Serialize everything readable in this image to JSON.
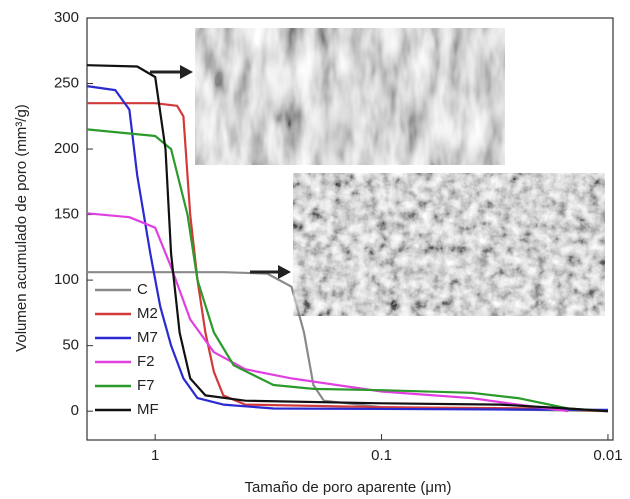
{
  "chart_data": {
    "type": "line",
    "xlabel": "Tamaño de poro aparente (μm)",
    "ylabel": "Volumen acumulado de poro (mm³/g)",
    "xlog": true,
    "xlim": [
      2,
      0.0095
    ],
    "xticks": [
      1,
      0.1,
      0.01
    ],
    "ylim": [
      -22,
      300
    ],
    "yticks": [
      0,
      50,
      100,
      150,
      200,
      250,
      300
    ],
    "legend": "lower left",
    "series": [
      {
        "name": "C",
        "color": "#8a8a8a",
        "x": [
          2,
          1.0,
          0.5,
          0.32,
          0.25,
          0.22,
          0.2,
          0.18,
          0.1,
          0.05,
          0.01
        ],
        "values": [
          106,
          106,
          106,
          105,
          95,
          60,
          20,
          8,
          3,
          2,
          0
        ]
      },
      {
        "name": "M2",
        "color": "#d23a3a",
        "x": [
          2,
          1.0,
          0.8,
          0.75,
          0.7,
          0.65,
          0.6,
          0.55,
          0.5,
          0.4,
          0.1,
          0.02,
          0.01
        ],
        "values": [
          235,
          235,
          233,
          225,
          150,
          100,
          60,
          30,
          12,
          5,
          3,
          2,
          0
        ]
      },
      {
        "name": "M7",
        "color": "#2a2ad0",
        "x": [
          2,
          1.5,
          1.3,
          1.2,
          1.05,
          0.95,
          0.85,
          0.75,
          0.65,
          0.5,
          0.3,
          0.01
        ],
        "values": [
          248,
          245,
          230,
          180,
          120,
          80,
          50,
          25,
          10,
          5,
          2,
          1
        ]
      },
      {
        "name": "F2",
        "color": "#e040e0",
        "x": [
          2,
          1.3,
          1.0,
          0.85,
          0.7,
          0.55,
          0.4,
          0.25,
          0.1,
          0.04,
          0.025,
          0.015
        ],
        "values": [
          151,
          148,
          140,
          110,
          70,
          45,
          32,
          25,
          15,
          10,
          5,
          0
        ]
      },
      {
        "name": "F7",
        "color": "#2a9a2a",
        "x": [
          2,
          1.0,
          0.85,
          0.72,
          0.65,
          0.55,
          0.45,
          0.3,
          0.2,
          0.1,
          0.04,
          0.025,
          0.015,
          0.01
        ],
        "values": [
          215,
          210,
          200,
          150,
          100,
          60,
          35,
          20,
          17,
          16,
          14,
          10,
          2,
          0
        ]
      },
      {
        "name": "MF",
        "color": "#111111",
        "x": [
          2,
          1.2,
          1.0,
          0.9,
          0.85,
          0.78,
          0.7,
          0.6,
          0.4,
          0.1,
          0.03,
          0.015,
          0.01
        ],
        "values": [
          264,
          263,
          255,
          200,
          120,
          60,
          25,
          12,
          8,
          6,
          5,
          2,
          0
        ]
      }
    ]
  }
}
